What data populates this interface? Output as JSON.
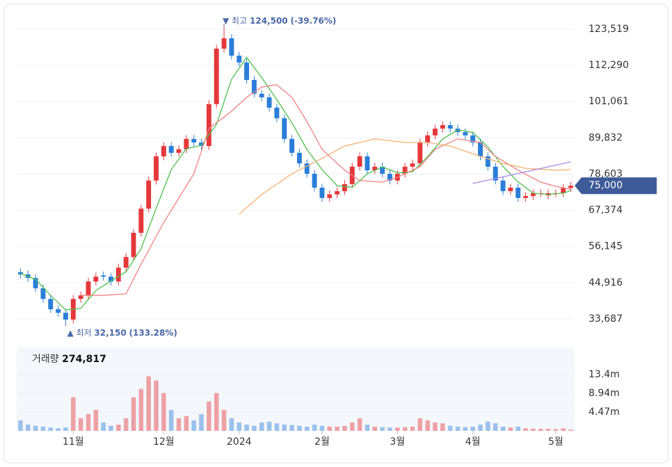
{
  "chart_data": {
    "type": "candlestick",
    "open": [
      48200,
      47500,
      46400,
      43200,
      39900,
      36700,
      35600,
      33500,
      39900,
      41000,
      45300,
      47200,
      46800,
      45300,
      49600,
      52900,
      60400,
      67900,
      76600,
      84100,
      87300,
      85200,
      86300,
      89500,
      88400,
      87300,
      100300,
      117500,
      120700,
      115300,
      113200,
      107800,
      103500,
      102400,
      99200,
      95900,
      89500,
      85200,
      81900,
      78700,
      74400,
      71200,
      72300,
      73300,
      75500,
      80900,
      84100,
      79800,
      80900,
      78700,
      76600,
      78700,
      80900,
      81900,
      88400,
      90600,
      92700,
      93800,
      92700,
      91600,
      90600,
      88400,
      84100,
      80900,
      76600,
      73300,
      74400,
      71200,
      71800,
      72700,
      72000,
      72700,
      72700,
      74300
    ],
    "high": [
      49400,
      48700,
      47600,
      44400,
      41100,
      37900,
      36800,
      41100,
      42200,
      46500,
      48000,
      48400,
      48000,
      50800,
      54100,
      61600,
      69100,
      77800,
      85300,
      88500,
      88500,
      87500,
      90700,
      90700,
      89600,
      101500,
      118700,
      124500,
      121900,
      116500,
      114400,
      109000,
      104700,
      103600,
      100400,
      97100,
      90700,
      86400,
      83100,
      79900,
      75600,
      73500,
      74500,
      76700,
      82100,
      85300,
      85300,
      82100,
      82100,
      79900,
      79900,
      82100,
      83100,
      89600,
      91800,
      93900,
      95000,
      95000,
      93900,
      92800,
      91800,
      89600,
      85300,
      82100,
      77800,
      75600,
      75600,
      73000,
      73900,
      73900,
      73900,
      73900,
      75500,
      76200
    ],
    "low": [
      46300,
      45200,
      42000,
      38700,
      35500,
      34400,
      32150,
      32300,
      38700,
      39800,
      44100,
      45600,
      44100,
      44100,
      48400,
      51700,
      59200,
      66700,
      75400,
      82900,
      84000,
      84000,
      85100,
      87200,
      86100,
      86100,
      99100,
      116300,
      114100,
      112000,
      106600,
      102300,
      101200,
      98000,
      94700,
      88300,
      84000,
      80700,
      77500,
      73200,
      70000,
      70000,
      71100,
      72100,
      74300,
      79700,
      78600,
      78600,
      77500,
      75400,
      75400,
      77500,
      79700,
      80700,
      87200,
      89400,
      91500,
      91500,
      90400,
      89400,
      87200,
      82900,
      79700,
      75400,
      72100,
      72100,
      70000,
      70000,
      70600,
      71500,
      70800,
      71500,
      71500,
      73100
    ],
    "close": [
      47500,
      46400,
      43200,
      39900,
      36700,
      35600,
      33500,
      39900,
      41000,
      45300,
      46800,
      46800,
      45300,
      49600,
      52900,
      60400,
      67900,
      76600,
      84100,
      87300,
      85200,
      86300,
      89500,
      88400,
      87300,
      100300,
      117500,
      120700,
      115300,
      113200,
      107800,
      103500,
      102400,
      99200,
      95900,
      89500,
      85200,
      81900,
      78700,
      74400,
      71200,
      72300,
      73300,
      75500,
      80900,
      84100,
      79800,
      80900,
      78700,
      76600,
      78700,
      80900,
      81900,
      88400,
      90600,
      92700,
      93800,
      92700,
      91600,
      90600,
      88400,
      84100,
      80900,
      76600,
      73300,
      74400,
      71200,
      71800,
      72700,
      72700,
      72700,
      72700,
      74300,
      75000
    ],
    "up_color": "#e5383b",
    "down_color": "#2b7ed8",
    "ylim": [
      27009,
      129335
    ],
    "yticks": [
      {
        "value": 33687,
        "label": "33,687"
      },
      {
        "value": 44916,
        "label": "44,916"
      },
      {
        "value": 56145,
        "label": "56,145"
      },
      {
        "value": 67374,
        "label": "67,374"
      },
      {
        "value": 78603,
        "label": "78,603"
      },
      {
        "value": 89832,
        "label": "89,832"
      },
      {
        "value": 101061,
        "label": "101,061"
      },
      {
        "value": 112290,
        "label": "112,290"
      },
      {
        "value": 123519,
        "label": "123,519"
      }
    ],
    "grid": true,
    "xticks": [
      {
        "value": 7,
        "label": "11월"
      },
      {
        "value": 19,
        "label": "12월"
      },
      {
        "value": 29,
        "label": "2024"
      },
      {
        "value": 40,
        "label": "2월"
      },
      {
        "value": 50,
        "label": "3월"
      },
      {
        "value": 60,
        "label": "4월"
      },
      {
        "value": 71,
        "label": "5월"
      }
    ],
    "lines": [
      {
        "color": "#4cc04c",
        "x": [
          0,
          2,
          4,
          6,
          8,
          10,
          12,
          14,
          16,
          18,
          20,
          22,
          24,
          26,
          28,
          30,
          32,
          34,
          36,
          38,
          40,
          42,
          44,
          46,
          48,
          50,
          52,
          54,
          56,
          58,
          60,
          62,
          64,
          66,
          68,
          70,
          72,
          73
        ],
        "values": [
          47800,
          46000,
          41000,
          36500,
          37000,
          42500,
          45500,
          48300,
          55500,
          68000,
          80000,
          86500,
          87500,
          94000,
          108000,
          114800,
          108500,
          101700,
          94500,
          86200,
          80000,
          75000,
          74500,
          78700,
          80800,
          79000,
          79300,
          84000,
          89500,
          92300,
          91500,
          87000,
          81000,
          76200,
          72700,
          72300,
          72700,
          73500
        ]
      },
      {
        "color": "#f08080",
        "x": [
          8,
          11,
          14,
          16,
          19,
          23,
          25,
          28,
          30,
          32,
          34,
          36,
          38,
          40,
          43,
          45,
          48,
          50,
          53,
          55,
          58,
          61,
          63,
          66,
          69,
          71,
          73
        ],
        "values": [
          41000,
          41000,
          41500,
          50700,
          63600,
          78700,
          92700,
          98100,
          102400,
          105600,
          106300,
          102400,
          94900,
          86300,
          79800,
          76600,
          76100,
          77600,
          80900,
          86300,
          89500,
          88400,
          84100,
          79800,
          76100,
          74800,
          73900
        ]
      },
      {
        "color": "#f5b070",
        "x": [
          29,
          32,
          36,
          40,
          43,
          47,
          51,
          54,
          57,
          61,
          64,
          67,
          71,
          73
        ],
        "values": [
          66200,
          72300,
          78700,
          83500,
          87300,
          89500,
          88400,
          88400,
          87300,
          84100,
          81900,
          80400,
          79800,
          80000
        ]
      },
      {
        "color": "#a98ae8",
        "x": [
          60,
          73
        ],
        "values": [
          75700,
          82400
        ]
      }
    ],
    "high_note": {
      "index": 27,
      "label": "최고",
      "value": 124500,
      "value_label": "124,500",
      "change": "(-39.76%)"
    },
    "low_note": {
      "index": 6,
      "label": "최저",
      "value": 32150,
      "value_label": "32,150",
      "change": "(133.28%)"
    },
    "current_price": {
      "value": 75000,
      "label": "75,000"
    },
    "volume": {
      "label": "거래량",
      "latest_label": "274,817",
      "values": [
        2500000,
        1500000,
        1200000,
        1000000,
        800000,
        600000,
        800000,
        8000000,
        3000000,
        4000000,
        5000000,
        2000000,
        1200000,
        1500000,
        3000000,
        8000000,
        10000000,
        13000000,
        12000000,
        9000000,
        5000000,
        3000000,
        3500000,
        2500000,
        4000000,
        7000000,
        9000000,
        5000000,
        3000000,
        2000000,
        1500000,
        1200000,
        2000000,
        2200000,
        1800000,
        1500000,
        1400000,
        1200000,
        1000000,
        1500000,
        1200000,
        1000000,
        1000000,
        1200000,
        2000000,
        3000000,
        1500000,
        1000000,
        900000,
        800000,
        800000,
        900000,
        1000000,
        3000000,
        2500000,
        2000000,
        1800000,
        1200000,
        1000000,
        900000,
        1000000,
        1500000,
        2200000,
        1800000,
        1000000,
        800000,
        1000000,
        600000,
        500000,
        500000,
        500000,
        400000,
        600000,
        274817
      ],
      "ylim": [
        0,
        19870000
      ],
      "yticks": [
        {
          "value": 4470000,
          "label": "4.47m"
        },
        {
          "value": 8940000,
          "label": "8.94m"
        },
        {
          "value": 13400000,
          "label": "13.4m"
        }
      ]
    }
  }
}
